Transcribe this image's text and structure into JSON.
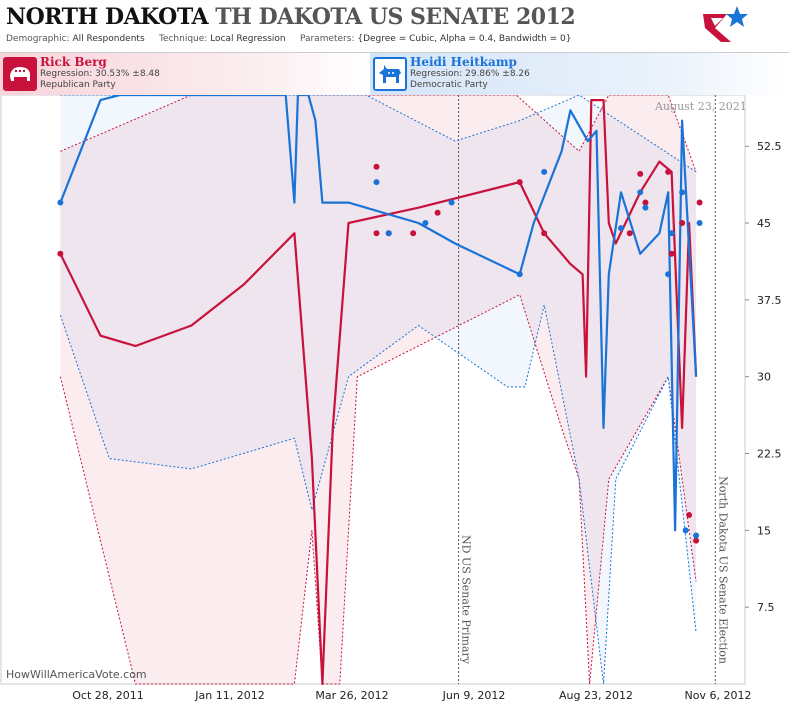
{
  "header": {
    "title_state": "NORTH DAKOTA",
    "title_race": "TH DAKOTA US SENATE 2012",
    "demographic_label": "Demographic:",
    "demographic_value": "All Respondents",
    "technique_label": "Technique:",
    "technique_value": "Local Regression",
    "parameters_label": "Parameters:",
    "parameters_value": "{Degree = Cubic, Alpha = 0.4, Bandwidth = 0}"
  },
  "candidates": [
    {
      "name": "Rick Berg",
      "regression": "Regression: 30.53% ±8.48",
      "party": "Republican Party",
      "color": "#c8123c",
      "icon": "elephant-icon"
    },
    {
      "name": "Heidi Heitkamp",
      "regression": "Regression: 29.86% ±8.26",
      "party": "Democratic Party",
      "color": "#1a73d6",
      "icon": "donkey-icon"
    }
  ],
  "watermark": "HowWillAmericaVote.com",
  "datestamp": "August 23, 2021",
  "chart_data": {
    "type": "line",
    "x_ticks": [
      "Oct 28, 2011",
      "Jan 11, 2012",
      "Mar 26, 2012",
      "Jun 9, 2012",
      "Aug 23, 2012",
      "Nov 6, 2012"
    ],
    "y_ticks": [
      7.5,
      15,
      22.5,
      30,
      37.5,
      45,
      52.5
    ],
    "ylim": [
      0,
      57.5
    ],
    "xlim": [
      "2011-09-24",
      "2012-11-23"
    ],
    "event_lines": [
      {
        "date": "2012-06-12",
        "label": "ND US Senate Primary"
      },
      {
        "date": "2012-11-06",
        "label": "North Dakota US Senate Election"
      }
    ],
    "series": [
      {
        "name": "Rick Berg",
        "color": "#c8123c",
        "points": [
          [
            "2011-10-28",
            42
          ],
          [
            "2012-04-26",
            44
          ],
          [
            "2012-04-26",
            50.5
          ],
          [
            "2012-05-03",
            44
          ],
          [
            "2012-05-17",
            44
          ],
          [
            "2012-05-31",
            46
          ],
          [
            "2012-07-17",
            49
          ],
          [
            "2012-07-31",
            44
          ],
          [
            "2012-09-18",
            44
          ],
          [
            "2012-09-24",
            49.8
          ],
          [
            "2012-09-27",
            47
          ],
          [
            "2012-10-10",
            50
          ],
          [
            "2012-10-12",
            42
          ],
          [
            "2012-10-18",
            45
          ],
          [
            "2012-10-22",
            16.5
          ],
          [
            "2012-10-26",
            14
          ],
          [
            "2012-10-28",
            47
          ]
        ],
        "trend": [
          [
            "2011-10-28",
            42
          ],
          [
            "2011-11-20",
            34
          ],
          [
            "2011-12-10",
            33
          ],
          [
            "2012-01-11",
            35
          ],
          [
            "2012-02-10",
            39
          ],
          [
            "2012-03-10",
            44
          ],
          [
            "2012-03-20",
            22
          ],
          [
            "2012-03-26",
            0
          ],
          [
            "2012-04-01",
            25
          ],
          [
            "2012-04-10",
            45
          ],
          [
            "2012-05-20",
            46.5
          ],
          [
            "2012-07-17",
            49
          ],
          [
            "2012-07-31",
            44
          ],
          [
            "2012-08-15",
            41
          ],
          [
            "2012-08-22",
            40
          ],
          [
            "2012-08-24",
            30
          ],
          [
            "2012-08-27",
            57
          ],
          [
            "2012-09-03",
            57
          ],
          [
            "2012-09-06",
            45
          ],
          [
            "2012-09-10",
            43
          ],
          [
            "2012-09-24",
            48
          ],
          [
            "2012-10-05",
            51
          ],
          [
            "2012-10-12",
            50
          ],
          [
            "2012-10-18",
            25
          ],
          [
            "2012-10-22",
            45
          ],
          [
            "2012-10-26",
            30
          ]
        ],
        "upper": [
          [
            "2011-10-28",
            52
          ],
          [
            "2012-01-11",
            57.5
          ],
          [
            "2012-03-10",
            57.5
          ],
          [
            "2012-03-20",
            57.5
          ],
          [
            "2012-04-05",
            57.5
          ],
          [
            "2012-05-20",
            57.5
          ],
          [
            "2012-07-15",
            57.5
          ],
          [
            "2012-08-20",
            52
          ],
          [
            "2012-09-06",
            57.5
          ],
          [
            "2012-10-10",
            57.5
          ],
          [
            "2012-10-26",
            50
          ]
        ],
        "lower": [
          [
            "2011-10-28",
            30
          ],
          [
            "2011-12-10",
            0
          ],
          [
            "2012-03-10",
            0
          ],
          [
            "2012-03-20",
            15
          ],
          [
            "2012-03-26",
            0
          ],
          [
            "2012-04-05",
            0
          ],
          [
            "2012-04-15",
            30
          ],
          [
            "2012-05-20",
            33
          ],
          [
            "2012-07-17",
            38
          ],
          [
            "2012-08-10",
            25
          ],
          [
            "2012-08-20",
            20
          ],
          [
            "2012-08-26",
            0
          ],
          [
            "2012-09-06",
            20
          ],
          [
            "2012-10-10",
            30
          ],
          [
            "2012-10-26",
            10
          ]
        ]
      },
      {
        "name": "Heidi Heitkamp",
        "color": "#1a73d6",
        "points": [
          [
            "2011-10-28",
            47
          ],
          [
            "2012-04-26",
            49
          ],
          [
            "2012-05-03",
            44
          ],
          [
            "2012-05-24",
            45
          ],
          [
            "2012-06-08",
            47
          ],
          [
            "2012-07-17",
            40
          ],
          [
            "2012-07-31",
            50
          ],
          [
            "2012-09-13",
            44.5
          ],
          [
            "2012-09-24",
            48
          ],
          [
            "2012-09-27",
            46.5
          ],
          [
            "2012-10-10",
            40
          ],
          [
            "2012-10-12",
            44
          ],
          [
            "2012-10-18",
            48
          ],
          [
            "2012-10-20",
            15
          ],
          [
            "2012-10-26",
            14.5
          ],
          [
            "2012-10-28",
            45
          ]
        ],
        "trend": [
          [
            "2011-10-28",
            47
          ],
          [
            "2011-11-20",
            57
          ],
          [
            "2011-12-01",
            57.5
          ],
          [
            "2012-02-20",
            57.5
          ],
          [
            "2012-03-05",
            57.5
          ],
          [
            "2012-03-10",
            47
          ],
          [
            "2012-03-12",
            57.5
          ],
          [
            "2012-03-18",
            57.5
          ],
          [
            "2012-03-22",
            55
          ],
          [
            "2012-03-26",
            47
          ],
          [
            "2012-04-10",
            47
          ],
          [
            "2012-05-20",
            45
          ],
          [
            "2012-06-10",
            43
          ],
          [
            "2012-07-17",
            40
          ],
          [
            "2012-07-25",
            45
          ],
          [
            "2012-08-10",
            52
          ],
          [
            "2012-08-15",
            56
          ],
          [
            "2012-08-25",
            53
          ],
          [
            "2012-08-30",
            54
          ],
          [
            "2012-09-03",
            25
          ],
          [
            "2012-09-06",
            40
          ],
          [
            "2012-09-13",
            48
          ],
          [
            "2012-09-24",
            42
          ],
          [
            "2012-10-05",
            44
          ],
          [
            "2012-10-10",
            48
          ],
          [
            "2012-10-14",
            15
          ],
          [
            "2012-10-18",
            55
          ],
          [
            "2012-10-26",
            30
          ]
        ],
        "upper": [
          [
            "2011-10-28",
            57.5
          ],
          [
            "2012-03-10",
            57.5
          ],
          [
            "2012-04-20",
            57.5
          ],
          [
            "2012-06-10",
            53
          ],
          [
            "2012-07-17",
            55
          ],
          [
            "2012-08-20",
            57.5
          ],
          [
            "2012-10-26",
            50
          ]
        ],
        "lower": [
          [
            "2011-10-28",
            36
          ],
          [
            "2011-11-25",
            22
          ],
          [
            "2012-01-11",
            21
          ],
          [
            "2012-03-10",
            24
          ],
          [
            "2012-03-20",
            17
          ],
          [
            "2012-04-10",
            30
          ],
          [
            "2012-05-20",
            35
          ],
          [
            "2012-07-10",
            29
          ],
          [
            "2012-07-20",
            29
          ],
          [
            "2012-07-31",
            37
          ],
          [
            "2012-08-20",
            20
          ],
          [
            "2012-09-03",
            0
          ],
          [
            "2012-09-10",
            20
          ],
          [
            "2012-10-10",
            30
          ],
          [
            "2012-10-26",
            5
          ]
        ]
      }
    ]
  }
}
